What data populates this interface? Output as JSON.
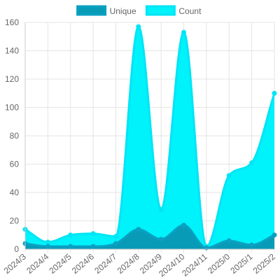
{
  "chart_data": {
    "type": "area",
    "categories": [
      "2024/3",
      "2024/4",
      "2024/5",
      "2024/6",
      "2024/7",
      "2024/8",
      "2024/9",
      "2024/10",
      "2024/11",
      "2025/0",
      "2025/1",
      "2025/2"
    ],
    "series": [
      {
        "name": "Unique",
        "values": [
          4,
          2,
          2,
          2,
          4,
          14,
          7,
          17,
          1,
          6,
          3,
          10
        ],
        "color": "#0ba1c2",
        "fill": "#079bb8"
      },
      {
        "name": "Count",
        "values": [
          14,
          5,
          10,
          11,
          9,
          157,
          28,
          153,
          2,
          52,
          61,
          110
        ],
        "color": "#00e5f5",
        "fill": "#00f2fa"
      }
    ],
    "ylim": [
      0,
      160
    ],
    "yticks": [
      0,
      20,
      40,
      60,
      80,
      100,
      120,
      140,
      160
    ],
    "grid": true,
    "legend_position": "top",
    "title": "",
    "xlabel": "",
    "ylabel": ""
  }
}
